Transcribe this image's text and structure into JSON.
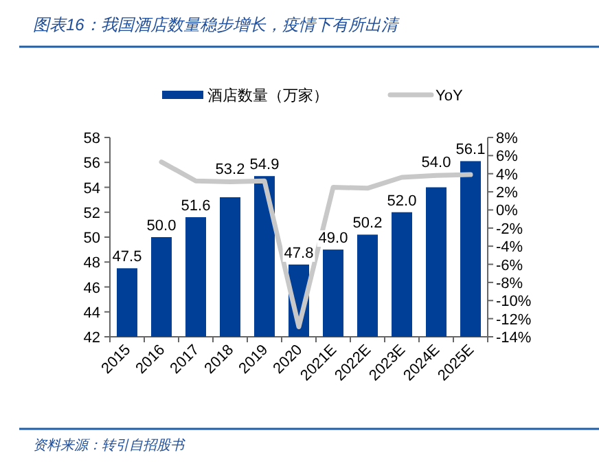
{
  "chart_data": {
    "type": "bar",
    "title": "图表16：我国酒店数量稳步增长，疫情下有所出清",
    "categories": [
      "2015",
      "2016",
      "2017",
      "2018",
      "2019",
      "2020",
      "2021E",
      "2022E",
      "2023E",
      "2024E",
      "2025E"
    ],
    "series": [
      {
        "name": "酒店数量（万家）",
        "type": "bar",
        "color": "#003f98",
        "values": [
          47.5,
          50.0,
          51.6,
          53.2,
          54.9,
          47.8,
          49.0,
          50.2,
          52.0,
          54.0,
          56.1
        ]
      },
      {
        "name": "YoY",
        "type": "line",
        "axis": "y2",
        "color": "#c8c8c8",
        "values": [
          null,
          5.3,
          3.2,
          3.1,
          3.2,
          -12.9,
          2.5,
          2.4,
          3.6,
          3.8,
          3.9
        ]
      }
    ],
    "ylim": [
      42,
      58
    ],
    "yticks": [
      42,
      44,
      46,
      48,
      50,
      52,
      54,
      56,
      58
    ],
    "y2lim": [
      -14,
      8
    ],
    "y2ticks": [
      {
        "value": -14,
        "label": "-14%"
      },
      {
        "value": -12,
        "label": "-12%"
      },
      {
        "value": -10,
        "label": "-10%"
      },
      {
        "value": -8,
        "label": "-8%"
      },
      {
        "value": -6,
        "label": "-6%"
      },
      {
        "value": -4,
        "label": "-4%"
      },
      {
        "value": -2,
        "label": "-2%"
      },
      {
        "value": 0,
        "label": "0%"
      },
      {
        "value": 2,
        "label": "2%"
      },
      {
        "value": 4,
        "label": "4%"
      },
      {
        "value": 6,
        "label": "6%"
      },
      {
        "value": 8,
        "label": "8%"
      }
    ],
    "value_labels": [
      "47.5",
      "50.0",
      "51.6",
      "53.2",
      "54.9",
      "47.8",
      "49.0",
      "50.2",
      "52.0",
      "54.0",
      "56.1"
    ],
    "legend": "top",
    "grid": false,
    "annotations": [
      "资料来源：转引自招股书"
    ]
  }
}
